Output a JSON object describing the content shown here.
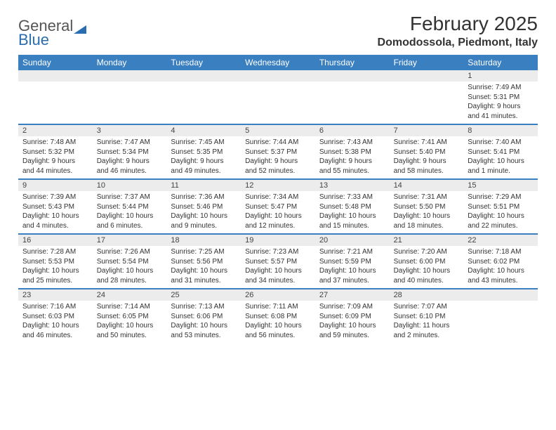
{
  "logo": {
    "text_general": "General",
    "text_blue": "Blue"
  },
  "title": "February 2025",
  "location": "Domodossola, Piedmont, Italy",
  "colors": {
    "header_bg": "#3a7fc0",
    "header_text": "#ffffff",
    "daynum_bg": "#ececec",
    "border": "#3a7fc0",
    "body_text": "#333333",
    "logo_blue": "#2a6db0"
  },
  "day_names": [
    "Sunday",
    "Monday",
    "Tuesday",
    "Wednesday",
    "Thursday",
    "Friday",
    "Saturday"
  ],
  "weeks": [
    [
      {
        "num": "",
        "sunrise": "",
        "sunset": "",
        "daylight": ""
      },
      {
        "num": "",
        "sunrise": "",
        "sunset": "",
        "daylight": ""
      },
      {
        "num": "",
        "sunrise": "",
        "sunset": "",
        "daylight": ""
      },
      {
        "num": "",
        "sunrise": "",
        "sunset": "",
        "daylight": ""
      },
      {
        "num": "",
        "sunrise": "",
        "sunset": "",
        "daylight": ""
      },
      {
        "num": "",
        "sunrise": "",
        "sunset": "",
        "daylight": ""
      },
      {
        "num": "1",
        "sunrise": "Sunrise: 7:49 AM",
        "sunset": "Sunset: 5:31 PM",
        "daylight": "Daylight: 9 hours and 41 minutes."
      }
    ],
    [
      {
        "num": "2",
        "sunrise": "Sunrise: 7:48 AM",
        "sunset": "Sunset: 5:32 PM",
        "daylight": "Daylight: 9 hours and 44 minutes."
      },
      {
        "num": "3",
        "sunrise": "Sunrise: 7:47 AM",
        "sunset": "Sunset: 5:34 PM",
        "daylight": "Daylight: 9 hours and 46 minutes."
      },
      {
        "num": "4",
        "sunrise": "Sunrise: 7:45 AM",
        "sunset": "Sunset: 5:35 PM",
        "daylight": "Daylight: 9 hours and 49 minutes."
      },
      {
        "num": "5",
        "sunrise": "Sunrise: 7:44 AM",
        "sunset": "Sunset: 5:37 PM",
        "daylight": "Daylight: 9 hours and 52 minutes."
      },
      {
        "num": "6",
        "sunrise": "Sunrise: 7:43 AM",
        "sunset": "Sunset: 5:38 PM",
        "daylight": "Daylight: 9 hours and 55 minutes."
      },
      {
        "num": "7",
        "sunrise": "Sunrise: 7:41 AM",
        "sunset": "Sunset: 5:40 PM",
        "daylight": "Daylight: 9 hours and 58 minutes."
      },
      {
        "num": "8",
        "sunrise": "Sunrise: 7:40 AM",
        "sunset": "Sunset: 5:41 PM",
        "daylight": "Daylight: 10 hours and 1 minute."
      }
    ],
    [
      {
        "num": "9",
        "sunrise": "Sunrise: 7:39 AM",
        "sunset": "Sunset: 5:43 PM",
        "daylight": "Daylight: 10 hours and 4 minutes."
      },
      {
        "num": "10",
        "sunrise": "Sunrise: 7:37 AM",
        "sunset": "Sunset: 5:44 PM",
        "daylight": "Daylight: 10 hours and 6 minutes."
      },
      {
        "num": "11",
        "sunrise": "Sunrise: 7:36 AM",
        "sunset": "Sunset: 5:46 PM",
        "daylight": "Daylight: 10 hours and 9 minutes."
      },
      {
        "num": "12",
        "sunrise": "Sunrise: 7:34 AM",
        "sunset": "Sunset: 5:47 PM",
        "daylight": "Daylight: 10 hours and 12 minutes."
      },
      {
        "num": "13",
        "sunrise": "Sunrise: 7:33 AM",
        "sunset": "Sunset: 5:48 PM",
        "daylight": "Daylight: 10 hours and 15 minutes."
      },
      {
        "num": "14",
        "sunrise": "Sunrise: 7:31 AM",
        "sunset": "Sunset: 5:50 PM",
        "daylight": "Daylight: 10 hours and 18 minutes."
      },
      {
        "num": "15",
        "sunrise": "Sunrise: 7:29 AM",
        "sunset": "Sunset: 5:51 PM",
        "daylight": "Daylight: 10 hours and 22 minutes."
      }
    ],
    [
      {
        "num": "16",
        "sunrise": "Sunrise: 7:28 AM",
        "sunset": "Sunset: 5:53 PM",
        "daylight": "Daylight: 10 hours and 25 minutes."
      },
      {
        "num": "17",
        "sunrise": "Sunrise: 7:26 AM",
        "sunset": "Sunset: 5:54 PM",
        "daylight": "Daylight: 10 hours and 28 minutes."
      },
      {
        "num": "18",
        "sunrise": "Sunrise: 7:25 AM",
        "sunset": "Sunset: 5:56 PM",
        "daylight": "Daylight: 10 hours and 31 minutes."
      },
      {
        "num": "19",
        "sunrise": "Sunrise: 7:23 AM",
        "sunset": "Sunset: 5:57 PM",
        "daylight": "Daylight: 10 hours and 34 minutes."
      },
      {
        "num": "20",
        "sunrise": "Sunrise: 7:21 AM",
        "sunset": "Sunset: 5:59 PM",
        "daylight": "Daylight: 10 hours and 37 minutes."
      },
      {
        "num": "21",
        "sunrise": "Sunrise: 7:20 AM",
        "sunset": "Sunset: 6:00 PM",
        "daylight": "Daylight: 10 hours and 40 minutes."
      },
      {
        "num": "22",
        "sunrise": "Sunrise: 7:18 AM",
        "sunset": "Sunset: 6:02 PM",
        "daylight": "Daylight: 10 hours and 43 minutes."
      }
    ],
    [
      {
        "num": "23",
        "sunrise": "Sunrise: 7:16 AM",
        "sunset": "Sunset: 6:03 PM",
        "daylight": "Daylight: 10 hours and 46 minutes."
      },
      {
        "num": "24",
        "sunrise": "Sunrise: 7:14 AM",
        "sunset": "Sunset: 6:05 PM",
        "daylight": "Daylight: 10 hours and 50 minutes."
      },
      {
        "num": "25",
        "sunrise": "Sunrise: 7:13 AM",
        "sunset": "Sunset: 6:06 PM",
        "daylight": "Daylight: 10 hours and 53 minutes."
      },
      {
        "num": "26",
        "sunrise": "Sunrise: 7:11 AM",
        "sunset": "Sunset: 6:08 PM",
        "daylight": "Daylight: 10 hours and 56 minutes."
      },
      {
        "num": "27",
        "sunrise": "Sunrise: 7:09 AM",
        "sunset": "Sunset: 6:09 PM",
        "daylight": "Daylight: 10 hours and 59 minutes."
      },
      {
        "num": "28",
        "sunrise": "Sunrise: 7:07 AM",
        "sunset": "Sunset: 6:10 PM",
        "daylight": "Daylight: 11 hours and 2 minutes."
      },
      {
        "num": "",
        "sunrise": "",
        "sunset": "",
        "daylight": ""
      }
    ]
  ]
}
